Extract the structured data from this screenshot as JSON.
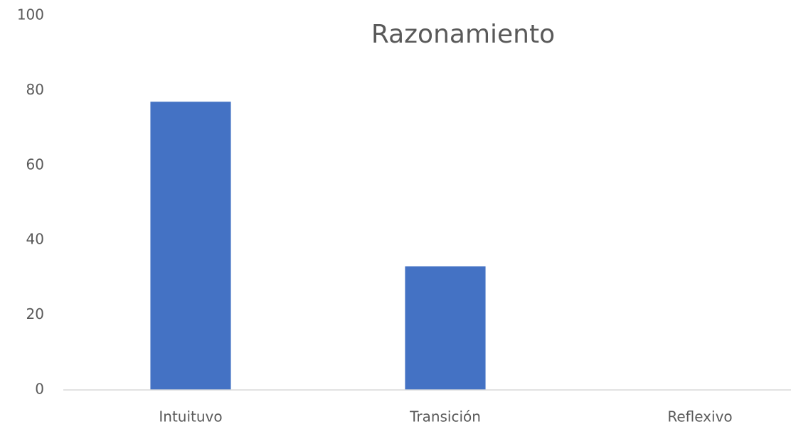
{
  "chart_data": {
    "type": "bar",
    "title": "Razonamiento",
    "categories": [
      "Intuituvo",
      "Transición",
      "Reflexivo"
    ],
    "values": [
      77,
      33,
      0
    ],
    "color": "#4472c4",
    "ylim": [
      0,
      100
    ],
    "yticks": [
      0,
      20,
      40,
      60,
      80,
      100
    ],
    "grid": false
  }
}
